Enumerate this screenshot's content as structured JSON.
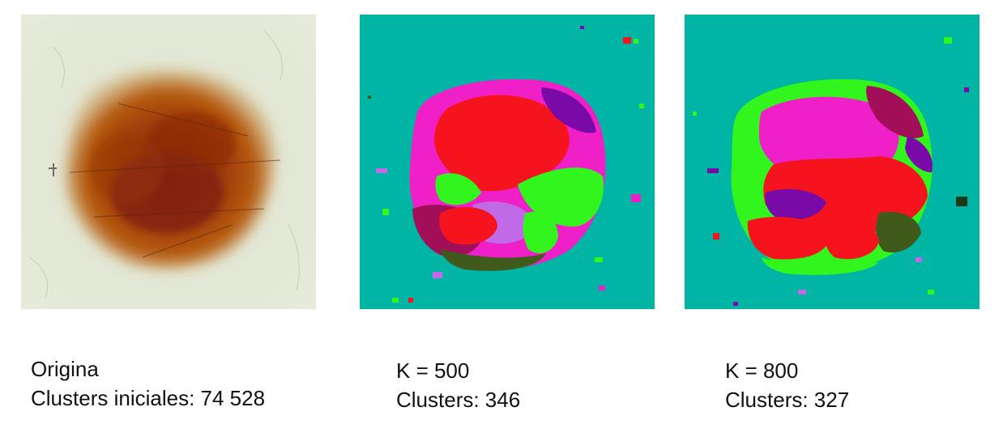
{
  "panels": [
    {
      "id": "original",
      "line1": "Origina",
      "line2": "Clusters iniciales: 74 528"
    },
    {
      "id": "k500",
      "line1": "K = 500",
      "line2": "Clusters: 346"
    },
    {
      "id": "k800",
      "line1": "K = 800",
      "line2": "Clusters: 327"
    }
  ],
  "colors": {
    "background_teal": "#00b5a3",
    "magenta": "#f020c8",
    "red": "#f5141e",
    "green": "#33f51e",
    "purple": "#7a0aa8",
    "maroon": "#a00f58",
    "lavender": "#c06ae8",
    "olive": "#3f5a1a",
    "skin": "#e4e8d8",
    "lesion_dark": "#8a2408",
    "lesion_mid": "#b5560c"
  }
}
